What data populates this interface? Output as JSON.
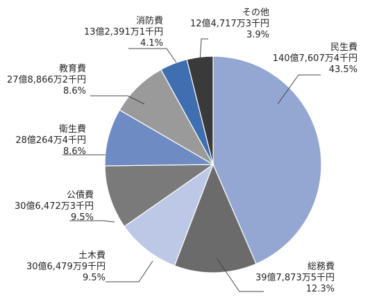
{
  "chart_data": {
    "type": "pie",
    "title": "",
    "unit": "千円",
    "slices": [
      {
        "name": "民生費",
        "amount": "140億7,607万4千円",
        "percent": 43.5,
        "percent_label": "43.5%",
        "color": "#94a7d2"
      },
      {
        "name": "総務費",
        "amount": "39億7,873万5千円",
        "percent": 12.3,
        "percent_label": "12.3%",
        "color": "#6b6b6b"
      },
      {
        "name": "土木費",
        "amount": "30億6,479万9千円",
        "percent": 9.5,
        "percent_label": "9.5%",
        "color": "#bcc8e6"
      },
      {
        "name": "公債費",
        "amount": "30億6,472万3千円",
        "percent": 9.5,
        "percent_label": "9.5%",
        "color": "#7a7a7a"
      },
      {
        "name": "衛生費",
        "amount": "28億264万4千円",
        "percent": 8.6,
        "percent_label": "8.6%",
        "color": "#6f8bc4"
      },
      {
        "name": "教育費",
        "amount": "27億8,866万2千円",
        "percent": 8.6,
        "percent_label": "8.6%",
        "color": "#9a9a9a"
      },
      {
        "name": "消防費",
        "amount": "13億2,391万1千円",
        "percent": 4.1,
        "percent_label": "4.1%",
        "color": "#3f6fb0"
      },
      {
        "name": "その他",
        "amount": "12億4,717万3千円",
        "percent": 3.9,
        "percent_label": "3.9%",
        "color": "#3a3a3a"
      }
    ]
  }
}
